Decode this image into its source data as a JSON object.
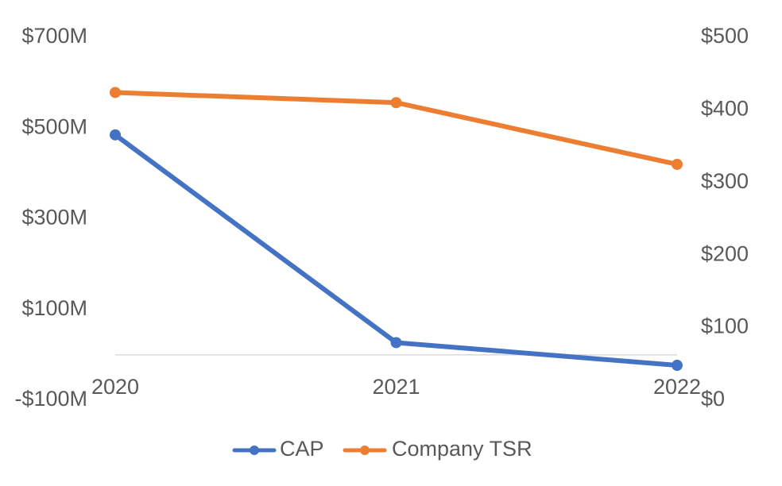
{
  "chart_data": {
    "type": "line",
    "categories": [
      "2020",
      "2021",
      "2022"
    ],
    "y_left": {
      "range": [
        -100,
        700
      ],
      "ticks": [
        700,
        500,
        300,
        100,
        -100
      ],
      "tick_labels": [
        "$700M",
        "$500M",
        "$300M",
        "$100M",
        "-$100M"
      ]
    },
    "y_right": {
      "range": [
        0,
        500
      ],
      "ticks": [
        500,
        400,
        300,
        200,
        100,
        0
      ],
      "tick_labels": [
        "$500",
        "$400",
        "$300",
        "$200",
        "$100",
        "$0"
      ]
    },
    "series": [
      {
        "name": "CAP",
        "axis": "left",
        "color": "#4472C4",
        "values": [
          485,
          27,
          -23
        ]
      },
      {
        "name": "Company TSR",
        "axis": "right",
        "color": "#ED7D31",
        "values": [
          424,
          410,
          325
        ]
      }
    ],
    "grid": false,
    "legend": "bottom"
  }
}
